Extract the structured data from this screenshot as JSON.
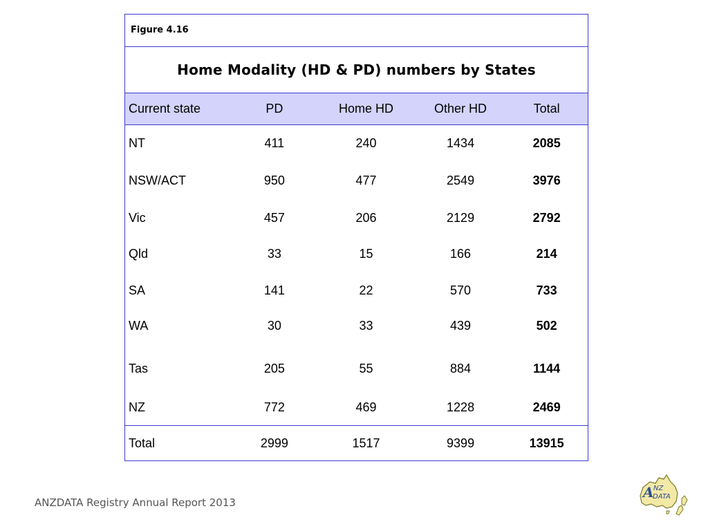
{
  "figure_label": "Figure 4.16",
  "title": "Home Modality (HD & PD) numbers by States",
  "table": {
    "headers": [
      "Current state",
      "PD",
      "Home HD",
      "Other HD",
      "Total"
    ],
    "rows": [
      [
        "NT",
        "411",
        "240",
        "1434",
        "2085"
      ],
      [
        "NSW/ACT",
        "950",
        "477",
        "2549",
        "3976"
      ],
      [
        "Vic",
        "457",
        "206",
        "2129",
        "2792"
      ],
      [
        "Qld",
        "33",
        "15",
        "166",
        "214"
      ],
      [
        "SA",
        "141",
        "22",
        "570",
        "733"
      ],
      [
        "WA",
        "30",
        "33",
        "439",
        "502"
      ],
      [
        "Tas",
        "205",
        "55",
        "884",
        "1144"
      ],
      [
        "NZ",
        "772",
        "469",
        "1228",
        "2469"
      ]
    ],
    "total_row": [
      "Total",
      "2999",
      "1517",
      "9399",
      "13915"
    ]
  },
  "footer": "ANZDATA Registry Annual Report 2013",
  "logo": {
    "text_top": "NZ",
    "text_a": "A",
    "text_bottom": "DATA",
    "colors": {
      "map_fill": "#f3e9a6",
      "map_outline": "#7a7a2a",
      "text": "#2e4d8f"
    }
  },
  "colors": {
    "border": "#3a3ad6",
    "header_bg": "#d3d3fb"
  }
}
